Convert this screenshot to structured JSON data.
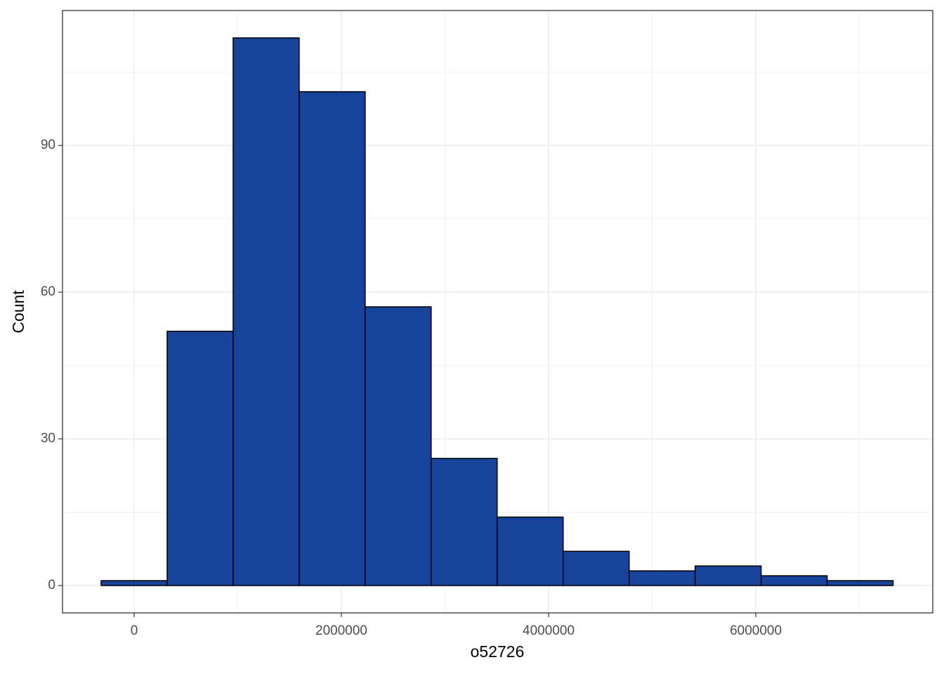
{
  "chart_data": {
    "type": "histogram",
    "x_label": "o52726",
    "y_label": "Count",
    "bins": [
      -318500,
      318500,
      955500,
      1592500,
      2229500,
      2866500,
      3503500,
      4140500,
      4777500,
      5414500,
      6051500,
      6688500,
      7325500
    ],
    "values": [
      1,
      52,
      112,
      101,
      57,
      26,
      14,
      7,
      3,
      4,
      2,
      1
    ],
    "color": "#18439a",
    "edge_color": "#000000",
    "xlim": [
      -691500,
      7708000
    ],
    "ylim": [
      -5.6,
      117.6
    ],
    "xticks": [
      0,
      2000000,
      4000000,
      6000000
    ],
    "yticks": [
      0,
      30,
      60,
      90
    ],
    "xminor": [
      1000000,
      3000000,
      5000000,
      7000000
    ],
    "yminor": [
      15,
      45,
      75,
      105
    ],
    "grid": true
  }
}
